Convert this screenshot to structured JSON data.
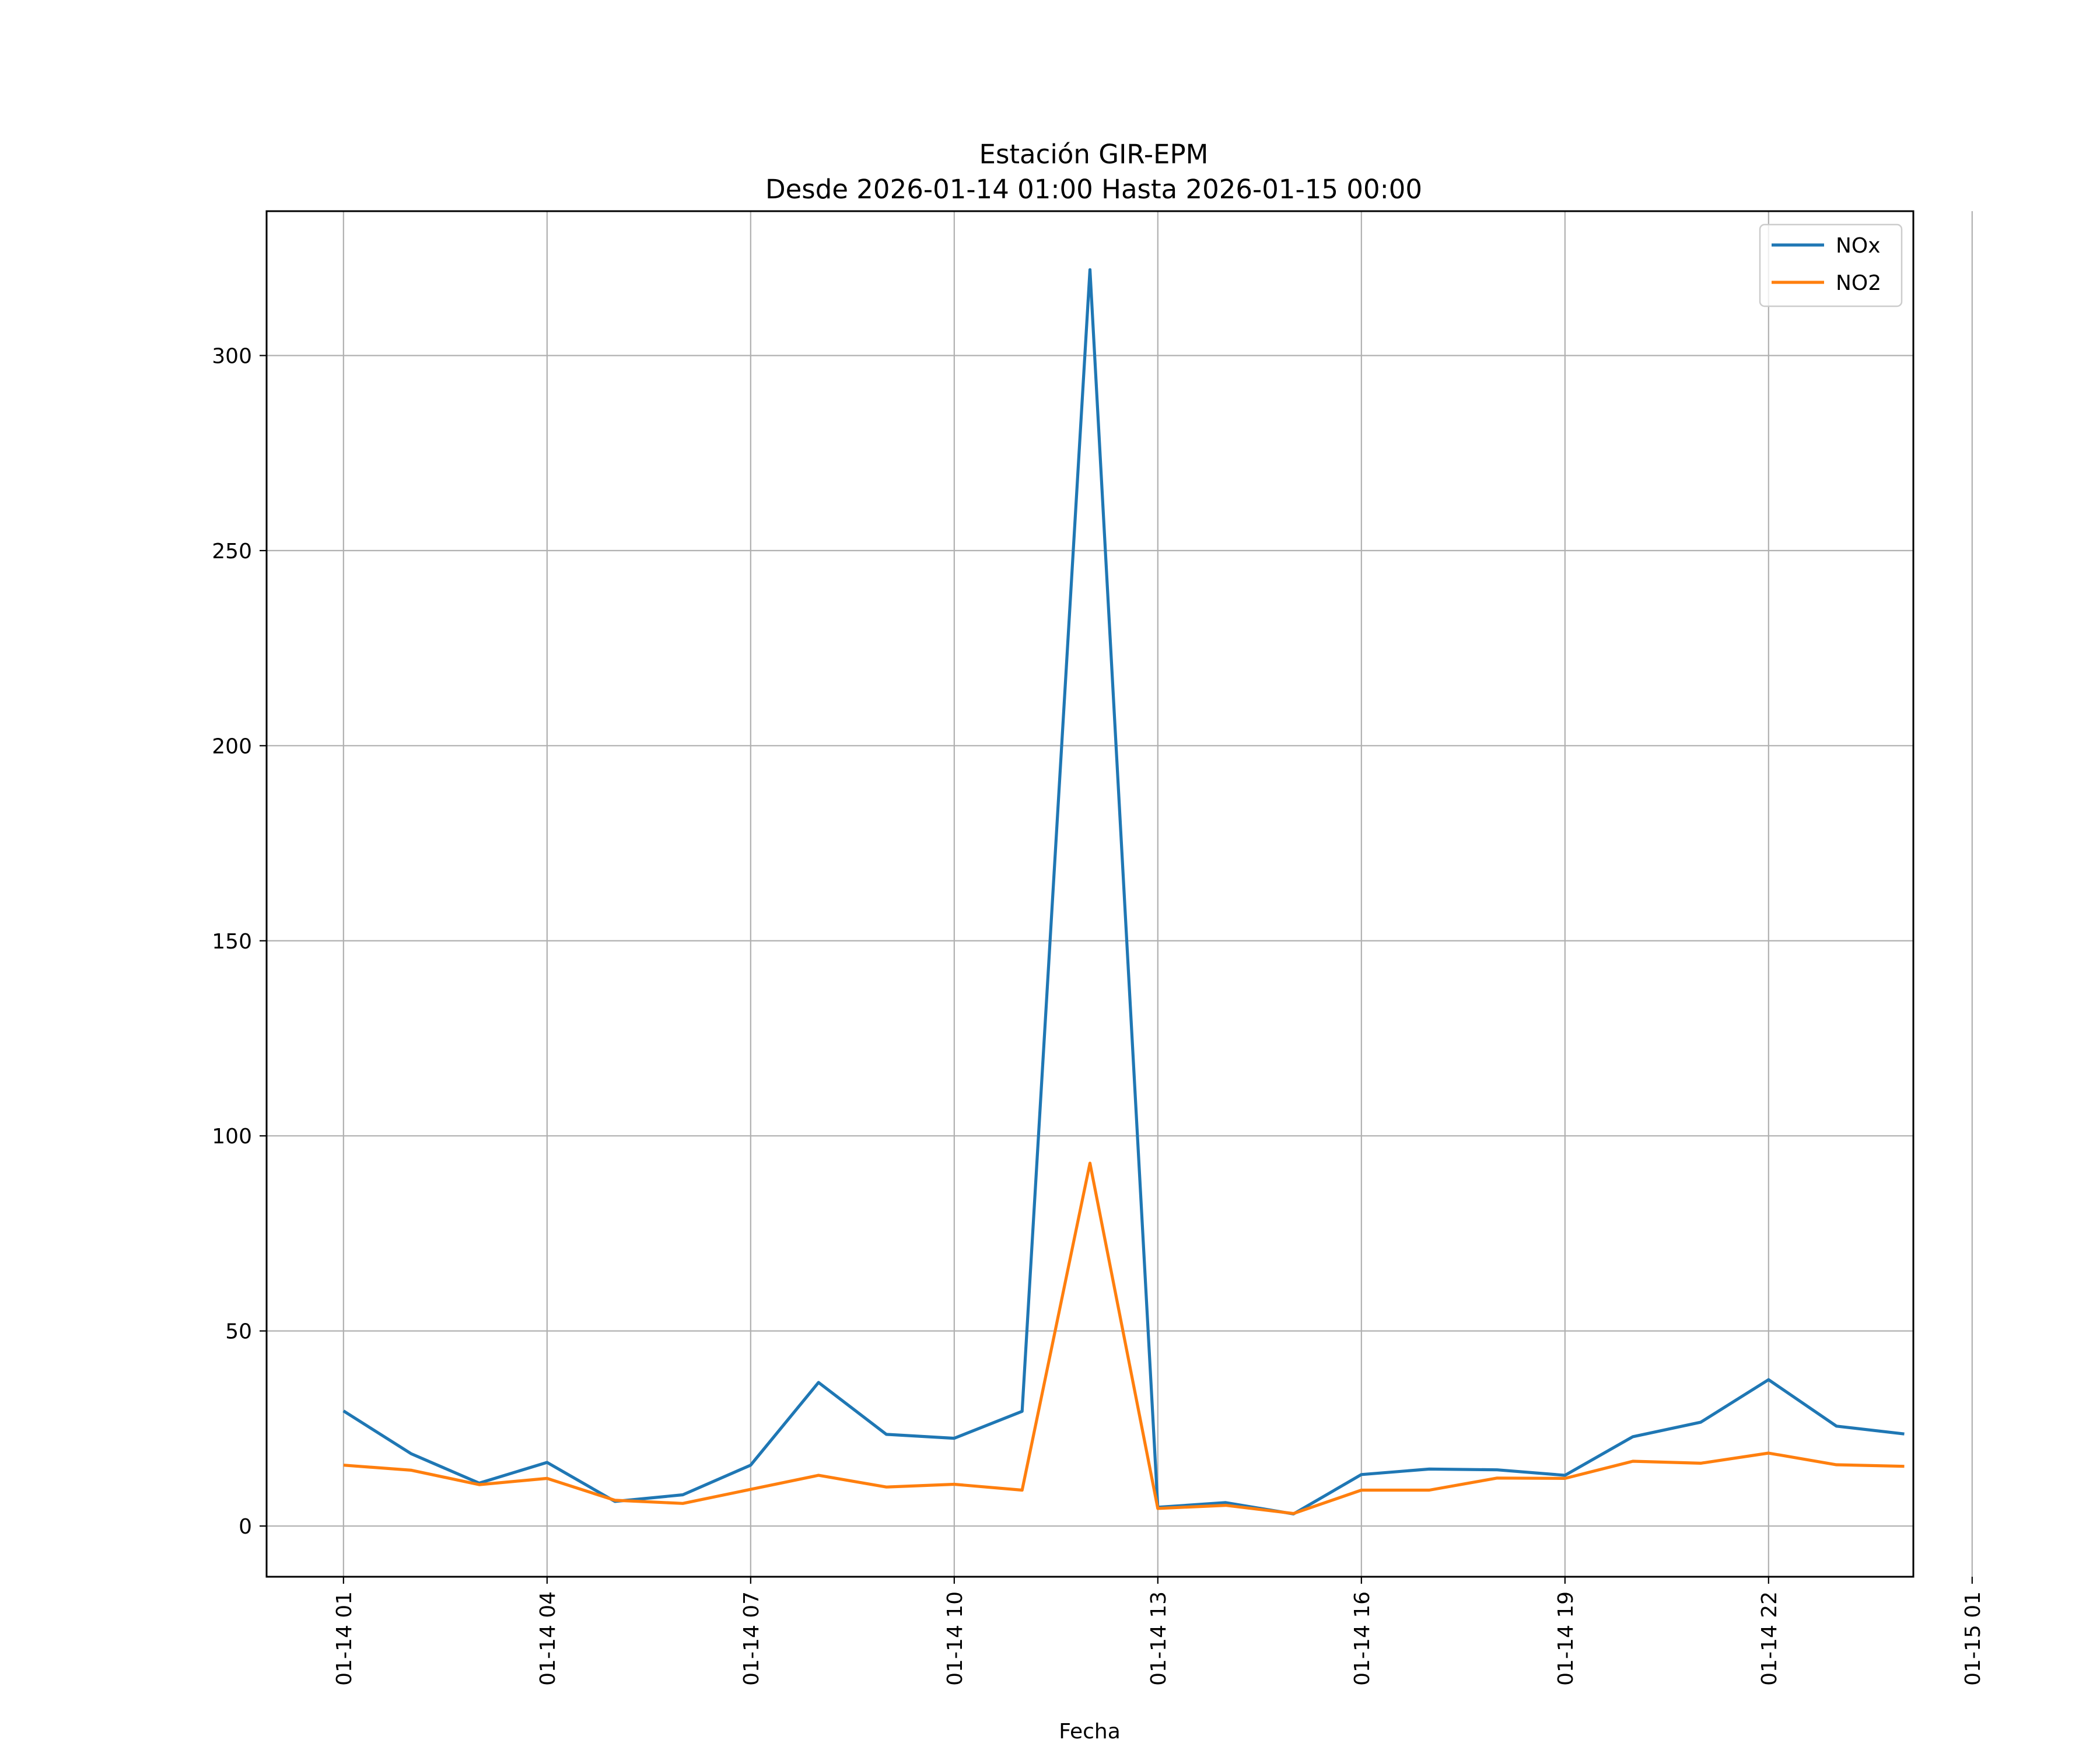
{
  "chart_data": {
    "type": "line",
    "title": "Estación GIR-EPM",
    "subtitle": "Desde 2026-01-14 01:00 Hasta 2026-01-15 00:00",
    "xlabel": "Fecha",
    "ylabel": "",
    "x": [
      "2026-01-14 01:00",
      "2026-01-14 02:00",
      "2026-01-14 03:00",
      "2026-01-14 04:00",
      "2026-01-14 05:00",
      "2026-01-14 06:00",
      "2026-01-14 07:00",
      "2026-01-14 08:00",
      "2026-01-14 09:00",
      "2026-01-14 10:00",
      "2026-01-14 11:00",
      "2026-01-14 12:00",
      "2026-01-14 13:00",
      "2026-01-14 14:00",
      "2026-01-14 15:00",
      "2026-01-14 16:00",
      "2026-01-14 17:00",
      "2026-01-14 18:00",
      "2026-01-14 19:00",
      "2026-01-14 20:00",
      "2026-01-14 21:00",
      "2026-01-14 22:00",
      "2026-01-14 23:00",
      "2026-01-15 00:00"
    ],
    "series": [
      {
        "name": "NOx",
        "color": "#1f77b4",
        "values": [
          29.5,
          18.5,
          11.0,
          16.3,
          6.3,
          8.0,
          15.6,
          36.8,
          23.5,
          22.5,
          29.4,
          322.0,
          4.8,
          6.0,
          3.1,
          13.2,
          14.6,
          14.4,
          13.0,
          22.9,
          26.6,
          37.5,
          25.6,
          23.6
        ]
      },
      {
        "name": "NO2",
        "color": "#ff7f0e",
        "values": [
          15.6,
          14.3,
          10.6,
          12.2,
          6.6,
          5.8,
          9.4,
          13.0,
          10.0,
          10.7,
          9.2,
          93.0,
          4.5,
          5.3,
          3.2,
          9.2,
          9.2,
          12.3,
          12.2,
          16.6,
          16.1,
          18.7,
          15.7,
          15.3
        ]
      }
    ],
    "x_ticks": [
      "01-14 01",
      "01-14 04",
      "01-14 07",
      "01-14 10",
      "01-14 13",
      "01-14 16",
      "01-14 19",
      "01-14 22",
      "01-15 01"
    ],
    "y_ticks": [
      "0",
      "50",
      "100",
      "150",
      "200",
      "250",
      "300"
    ],
    "ylim": [
      -13,
      337
    ],
    "xlim": [
      "2026-01-13 23:52",
      "2026-01-15 00:08"
    ],
    "grid": true,
    "legend_position": "upper right"
  }
}
